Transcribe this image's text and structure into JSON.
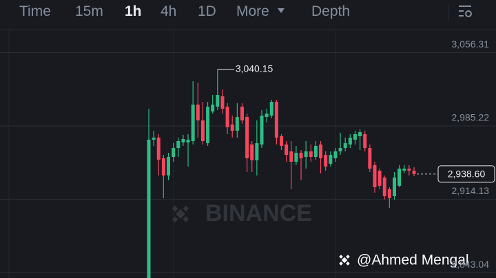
{
  "tabs": [
    "Time",
    "15m",
    "1h",
    "4h",
    "1D",
    "More",
    "Depth"
  ],
  "watermark": "BINANCE",
  "credit": "@Ahmed Mengal",
  "chart_data": {
    "type": "candlestick",
    "up_color": "#2ebd85",
    "down_color": "#f6465d",
    "grid": true,
    "ylim": [
      2837.74,
      3077.98
    ],
    "yticks": [
      {
        "value": 2843.04,
        "label": "2,843.04"
      },
      {
        "value": 2914.13,
        "label": "2,914.13"
      },
      {
        "value": 2985.22,
        "label": "2,985.22"
      },
      {
        "value": 3056.31,
        "label": "3,056.31"
      }
    ],
    "high_label": "3,040.15",
    "last_price_label": "2,938.60",
    "open": [
      2833.74,
      2971.87,
      2973.88,
      2953.86,
      2937.17,
      2955.19,
      2963.87,
      2969.2,
      2969.2,
      2970.54,
      3005.91,
      2990.56,
      2968.54,
      2999.23,
      3003.9,
      3013.91,
      3003.9,
      2986.55,
      2980.55,
      3003.9,
      2993.9,
      2967.2,
      2951.86,
      2967.2,
      2993.9,
      2995.23,
      3008.58,
      2975.21,
      2967.2,
      2960.53,
      2950.52,
      2959.2,
      2955.19,
      2960.53,
      2955.19,
      2967.2,
      2957.19,
      2948.52,
      2953.86,
      2960.53,
      2963.87,
      2967.2,
      2971.87,
      2975.21,
      2977.21,
      2963.87,
      2947.18,
      2941.85,
      2935.17,
      2923.83,
      2917.16,
      2927.16,
      2941.85,
      2943.85,
      2941.85
    ],
    "high": [
      3001.9,
      2980.55,
      2977.21,
      2957.19,
      2959.2,
      2968.54,
      2973.88,
      2976.54,
      2977.21,
      3028.6,
      3027.26,
      3008.58,
      3008.58,
      3015.25,
      3040.15,
      3020.58,
      3007.24,
      2995.23,
      3007.24,
      3007.24,
      2997.23,
      2970.54,
      2990.56,
      3000.57,
      3001.9,
      3010.58,
      3010.58,
      2977.21,
      2970.54,
      2970.54,
      2965.87,
      2961.86,
      2970.54,
      2967.2,
      2970.54,
      2970.54,
      2960.53,
      2960.53,
      2963.87,
      2978.55,
      2973.88,
      2977.21,
      2980.55,
      2981.88,
      2980.55,
      2967.2,
      2950.52,
      2943.85,
      2937.17,
      2925.83,
      2940.51,
      2947.18,
      2947.18,
      2947.18,
      2945.18
    ],
    "low": [
      2827.07,
      2965.87,
      2937.17,
      2915.15,
      2932.5,
      2950.52,
      2955.19,
      2965.87,
      2945.85,
      2967.2,
      2973.88,
      2967.2,
      2965.87,
      2997.23,
      3000.57,
      2997.23,
      2977.21,
      2973.88,
      2973.88,
      2987.22,
      2940.51,
      2940.51,
      2937.17,
      2963.87,
      2988.56,
      2992.56,
      2967.2,
      2961.86,
      2950.52,
      2923.83,
      2947.18,
      2932.5,
      2943.85,
      2950.52,
      2952.52,
      2939.18,
      2941.85,
      2945.85,
      2950.52,
      2957.19,
      2960.53,
      2963.87,
      2967.2,
      2961.86,
      2960.53,
      2940.51,
      2920.49,
      2923.83,
      2913.82,
      2905.81,
      2913.82,
      2925.83,
      2939.18,
      2937.17,
      2936.5
    ],
    "close": [
      2971.87,
      2973.88,
      2952.52,
      2937.17,
      2955.19,
      2963.87,
      2970.54,
      2972.54,
      2971.87,
      3005.91,
      2990.56,
      2970.54,
      3003.9,
      3005.91,
      3015.25,
      3001.9,
      2983.89,
      2980.55,
      2993.9,
      2990.56,
      2953.86,
      2951.86,
      2968.54,
      2995.23,
      2997.23,
      3008.58,
      2973.88,
      2965.87,
      2957.19,
      2950.52,
      2959.2,
      2953.86,
      2960.53,
      2955.19,
      2965.87,
      2953.86,
      2945.85,
      2957.19,
      2960.53,
      2963.87,
      2968.54,
      2973.88,
      2977.21,
      2979.21,
      2963.87,
      2943.85,
      2925.83,
      2927.16,
      2917.16,
      2915.15,
      2935.17,
      2943.85,
      2943.85,
      2941.85,
      2938.6
    ]
  }
}
